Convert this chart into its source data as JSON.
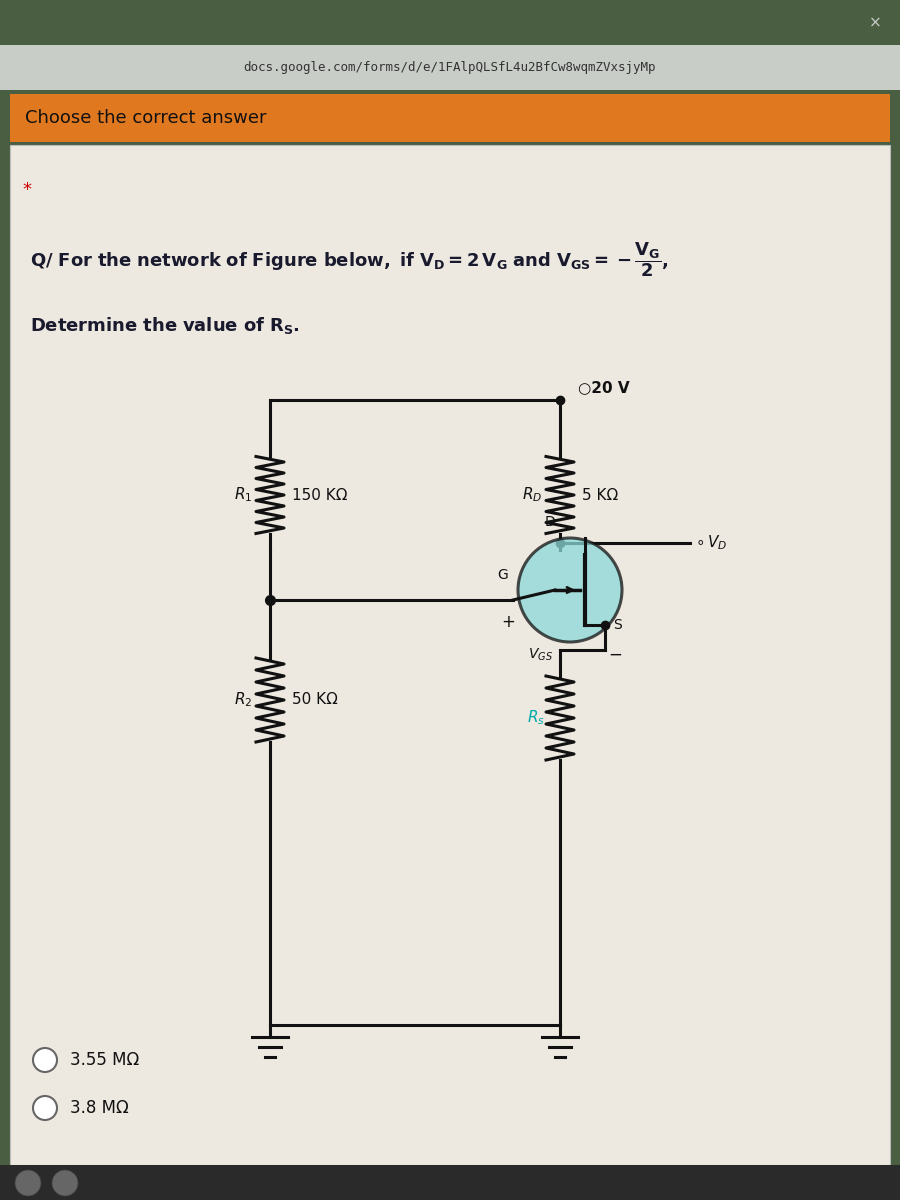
{
  "url_bar_text": "docs.google.com/forms/d/e/1FAlpQLSfL4u2BfCw8wqmZVxsjyMp",
  "header_text": "Choose the correct answer",
  "header_bg": "#E07820",
  "browser_top_bg": "#4a5e42",
  "url_bar_bg": "#c8cdc8",
  "main_bg": "#ede8e0",
  "circuit_color": "#111111",
  "mosfet_circle_color": "#8ad8d8",
  "rs_label_color": "#00aaaa",
  "answer_options": [
    "3.55 MΩ",
    "3.8 MΩ"
  ],
  "vdd_text": "\"20 V",
  "rd_label": "R_D",
  "rd_value": "5 KΩ",
  "r1_label": "R_1",
  "r1_value": "150 KΩ",
  "r2_label": "R_2",
  "r2_value": "50 KΩ",
  "rs_label": "R_s",
  "vgs_label": "V_GS",
  "vd_label": "V_D",
  "taskbar_color": "#2a2a2a",
  "icon_color": "#666666"
}
